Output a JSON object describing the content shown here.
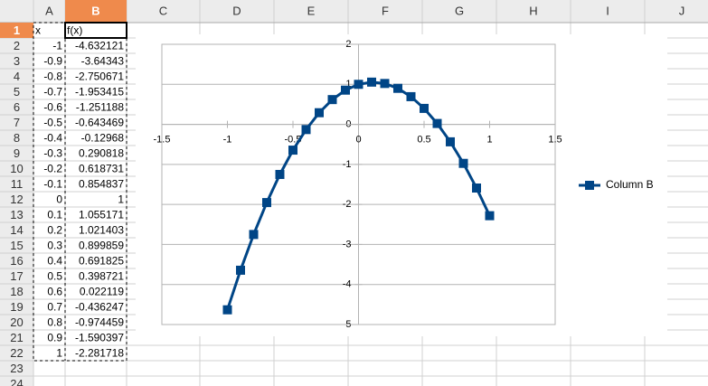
{
  "sheet": {
    "columns": [
      "A",
      "B",
      "C",
      "D",
      "E",
      "F",
      "G",
      "H",
      "I",
      "J"
    ],
    "row_numbers": [
      1,
      2,
      3,
      4,
      5,
      6,
      7,
      8,
      9,
      10,
      11,
      12,
      13,
      14,
      15,
      16,
      17,
      18,
      19,
      20,
      21,
      22,
      23,
      24
    ],
    "cells": [
      [
        "x",
        "f(x)"
      ],
      [
        -1,
        -4.632121
      ],
      [
        -0.9,
        -3.64343
      ],
      [
        -0.8,
        -2.750671
      ],
      [
        -0.7,
        -1.953415
      ],
      [
        -0.6,
        -1.251188
      ],
      [
        -0.5,
        -0.643469
      ],
      [
        -0.4,
        -0.12968
      ],
      [
        -0.3,
        0.290818
      ],
      [
        -0.2,
        0.618731
      ],
      [
        -0.1,
        0.854837
      ],
      [
        0,
        1
      ],
      [
        0.1,
        1.055171
      ],
      [
        0.2,
        1.021403
      ],
      [
        0.3,
        0.899859
      ],
      [
        0.4,
        0.691825
      ],
      [
        0.5,
        0.398721
      ],
      [
        0.6,
        0.022119
      ],
      [
        0.7,
        -0.436247
      ],
      [
        0.8,
        -0.974459
      ],
      [
        0.9,
        -1.590397
      ],
      [
        1,
        -2.281718
      ]
    ]
  },
  "chart": {
    "type": "line",
    "x": [
      -1,
      -0.9,
      -0.8,
      -0.7,
      -0.6,
      -0.5,
      -0.4,
      -0.3,
      -0.2,
      -0.1,
      0,
      0.1,
      0.2,
      0.3,
      0.4,
      0.5,
      0.6,
      0.7,
      0.8,
      0.9,
      1
    ],
    "series": [
      {
        "name": "Column B",
        "color": "#004586",
        "values": [
          -4.632121,
          -3.64343,
          -2.750671,
          -1.953415,
          -1.251188,
          -0.643469,
          -0.12968,
          0.290818,
          0.618731,
          0.854837,
          1,
          1.055171,
          1.021403,
          0.899859,
          0.691825,
          0.398721,
          0.022119,
          -0.436247,
          -0.974459,
          -1.590397,
          -2.281718
        ]
      }
    ],
    "xlim": [
      -1.5,
      1.5
    ],
    "xticks": [
      -1.5,
      -1,
      -0.5,
      0,
      0.5,
      1,
      1.5
    ],
    "ylim": [
      -5,
      2
    ],
    "yticks": [
      -5,
      -4,
      -3,
      -2,
      -1,
      0,
      1,
      2
    ],
    "grid": true,
    "legend": "right"
  }
}
